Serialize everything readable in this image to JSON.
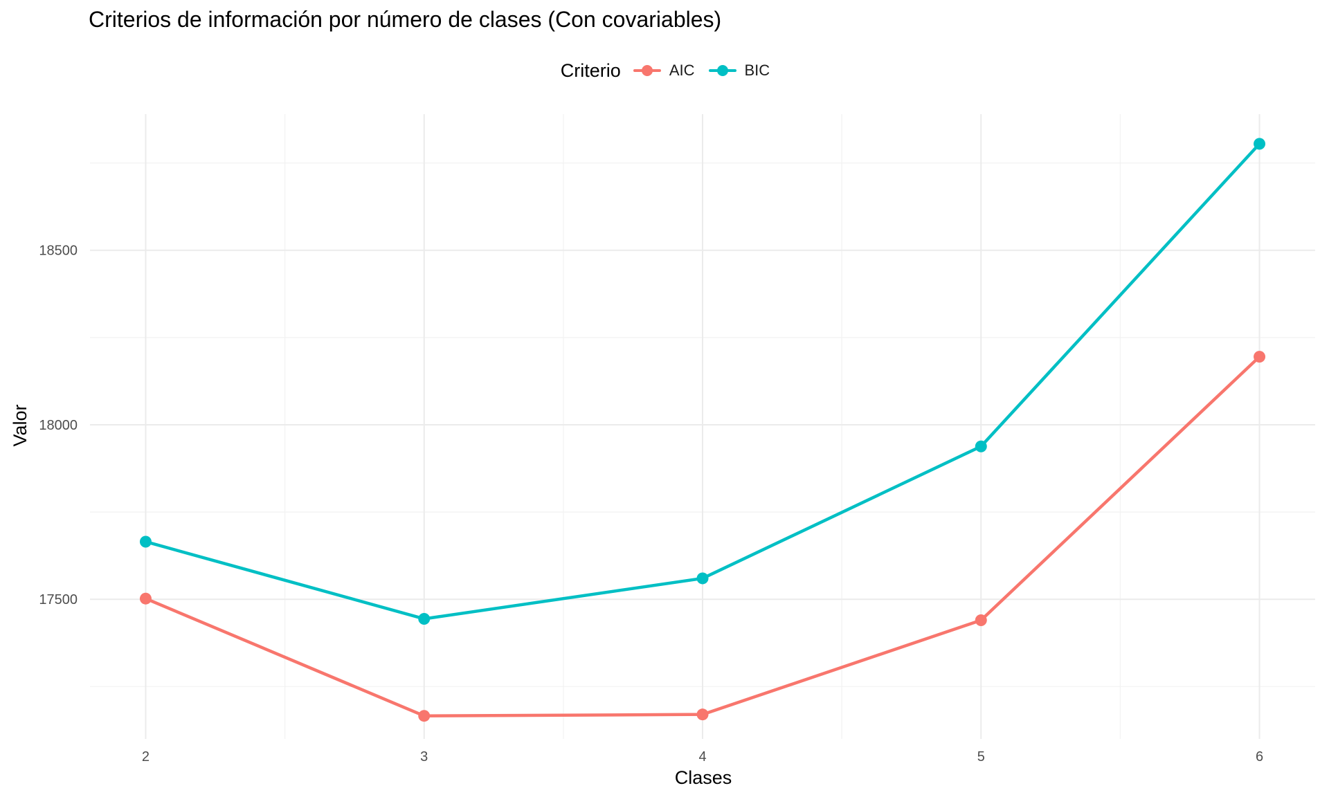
{
  "chart_data": {
    "type": "line",
    "title": "Criterios de información por número de clases (Con covariables)",
    "xlabel": "Clases",
    "ylabel": "Valor",
    "categories": [
      2,
      3,
      4,
      5,
      6
    ],
    "x_ticks": [
      "2",
      "3",
      "4",
      "5",
      "6"
    ],
    "y_ticks": [
      "17500",
      "18000",
      "18500"
    ],
    "y_tick_values": [
      17500,
      18000,
      18500
    ],
    "xlim": [
      1.8,
      6.2
    ],
    "ylim": [
      17100,
      18890
    ],
    "grid": true,
    "legend": {
      "title": "Criterio",
      "position": "top"
    },
    "series": [
      {
        "name": "AIC",
        "color": "#F8766D",
        "values": [
          17502,
          17166,
          17170,
          17440,
          18195
        ]
      },
      {
        "name": "BIC",
        "color": "#00BFC4",
        "values": [
          17665,
          17444,
          17560,
          17938,
          18805
        ]
      }
    ]
  }
}
